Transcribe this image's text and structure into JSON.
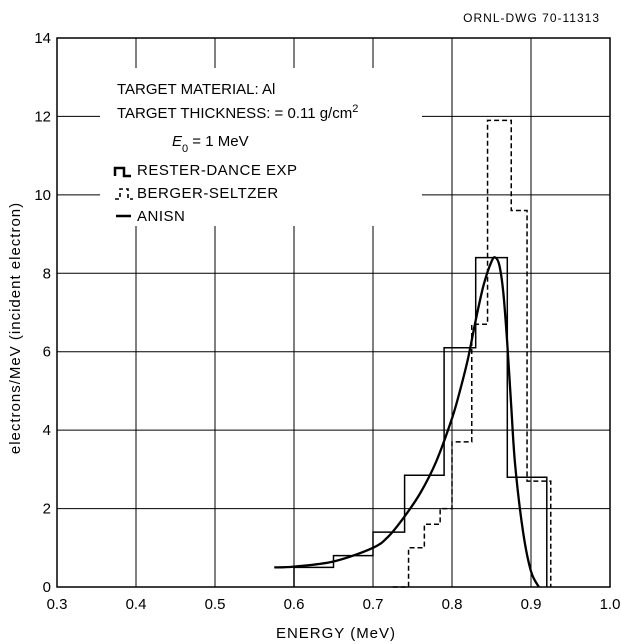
{
  "drawing_number": "ORNL-DWG 70-11313",
  "info": {
    "line1": "TARGET MATERIAL: Al",
    "line2_prefix": "TARGET THICKNESS: = 0.11 g/cm",
    "line2_sup": "2",
    "line3_var": "E",
    "line3_sub": "0",
    "line3_rest": " = 1 MeV"
  },
  "chart_data": {
    "type": "line",
    "xlabel": "ENERGY (MeV)",
    "ylabel": "electrons/MeV (incident electron)",
    "xlim": [
      0.3,
      1.0
    ],
    "ylim": [
      0,
      14
    ],
    "x_ticks": [
      0.3,
      0.4,
      0.5,
      0.6,
      0.7,
      0.8,
      0.9,
      1.0
    ],
    "x_tick_labels": [
      "0.3",
      "0.4",
      "0.5",
      "0.6",
      "0.7",
      "0.8",
      "0.9",
      "1.0"
    ],
    "y_ticks": [
      0,
      2,
      4,
      6,
      8,
      10,
      12,
      14
    ],
    "y_tick_labels": [
      "0",
      "2",
      "4",
      "6",
      "8",
      "10",
      "12",
      "14"
    ],
    "grid": true,
    "legend_placement": "top-left",
    "series": [
      {
        "name": "RESTER-DANCE EXP",
        "style": "step-solid",
        "x": [
          0.6,
          0.65,
          0.7,
          0.74,
          0.79,
          0.83,
          0.87,
          0.92
        ],
        "y": [
          0.5,
          0.8,
          1.4,
          2.85,
          6.1,
          8.4,
          2.8,
          0
        ]
      },
      {
        "name": "BERGER-SELTZER",
        "style": "step-dashed",
        "x": [
          0.725,
          0.745,
          0.765,
          0.785,
          0.8,
          0.825,
          0.845,
          0.875,
          0.895,
          0.925
        ],
        "y": [
          0,
          1.0,
          1.6,
          2.0,
          3.7,
          6.7,
          11.9,
          9.6,
          2.7,
          0.6
        ]
      },
      {
        "name": "ANISN",
        "style": "smooth-solid",
        "x": [
          0.575,
          0.6,
          0.65,
          0.7,
          0.72,
          0.74,
          0.76,
          0.78,
          0.8,
          0.81,
          0.82,
          0.83,
          0.84,
          0.85,
          0.855,
          0.86,
          0.865,
          0.87,
          0.875,
          0.88,
          0.89,
          0.9,
          0.91
        ],
        "y": [
          0.5,
          0.52,
          0.65,
          1.0,
          1.3,
          1.8,
          2.4,
          3.2,
          4.3,
          5.0,
          5.8,
          6.8,
          7.7,
          8.3,
          8.4,
          8.2,
          7.5,
          6.2,
          4.6,
          3.1,
          1.4,
          0.4,
          0.0
        ]
      }
    ]
  }
}
